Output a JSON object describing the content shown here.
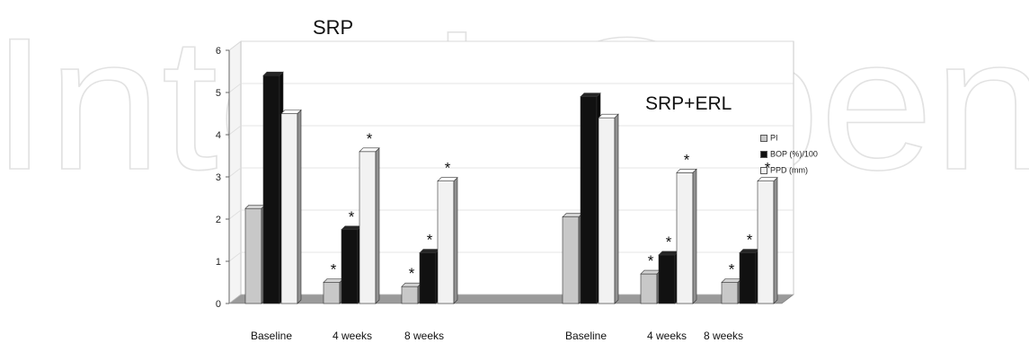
{
  "watermark_text": "IntechOpen",
  "chart_data": {
    "type": "bar",
    "style": "3d-bar",
    "ylim": [
      0,
      6
    ],
    "yticks": [
      "0",
      "1",
      "2",
      "3",
      "4",
      "5",
      "6"
    ],
    "grid": true,
    "legend_position": "right",
    "series": [
      {
        "name": "PI",
        "color": "#c8c8c8"
      },
      {
        "name": "BOP (%)/100",
        "color": "#111111"
      },
      {
        "name": "PPD (mm)",
        "color": "#f2f2f2"
      }
    ],
    "groups": [
      {
        "title": "SRP",
        "categories": [
          "Baseline",
          "4 weeks",
          "8 weeks"
        ],
        "values": {
          "PI": [
            2.25,
            0.5,
            0.4
          ],
          "BOP (%)/100": [
            5.4,
            1.75,
            1.2
          ],
          "PPD (mm)": [
            4.5,
            3.6,
            2.9
          ]
        },
        "significance": {
          "PI": [
            "",
            "*",
            "*"
          ],
          "BOP (%)/100": [
            "",
            "*",
            "*"
          ],
          "PPD (mm)": [
            "",
            "*",
            "*"
          ]
        }
      },
      {
        "title": "SRP+ERL",
        "categories": [
          "Baseline",
          "4 weeks",
          "8 weeks"
        ],
        "values": {
          "PI": [
            2.05,
            0.7,
            0.5
          ],
          "BOP (%)/100": [
            4.9,
            1.15,
            1.2
          ],
          "PPD (mm)": [
            4.4,
            3.1,
            2.9
          ]
        },
        "significance": {
          "PI": [
            "",
            "*",
            "*"
          ],
          "BOP (%)/100": [
            "",
            "*",
            "*"
          ],
          "PPD (mm)": [
            "",
            "*",
            "*"
          ]
        }
      }
    ]
  }
}
